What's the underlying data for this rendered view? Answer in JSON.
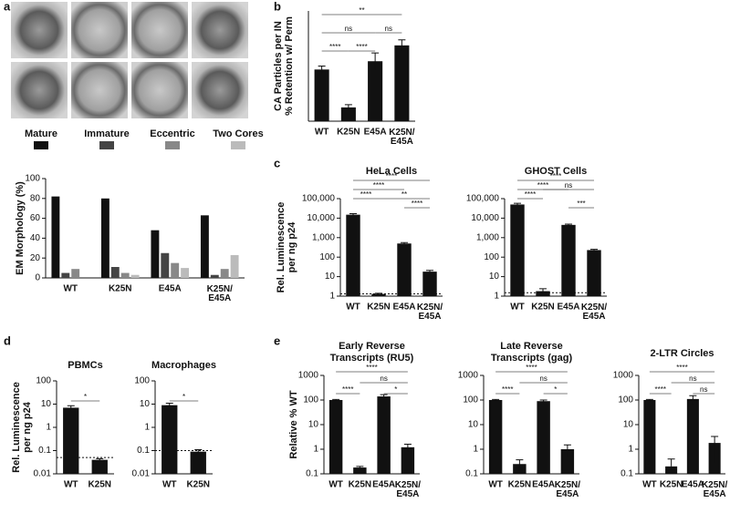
{
  "panel_labels": [
    "a",
    "b",
    "c",
    "d",
    "e"
  ],
  "chart_data": [
    {
      "type": "bar",
      "ylabel": [
        "EM Morphology (%)"
      ],
      "categories": [
        "WT",
        "K25N",
        "E45A",
        "K25N/E45A"
      ],
      "series": [
        {
          "name": "Mature",
          "color": "#111111",
          "values": [
            82,
            80,
            48,
            63
          ]
        },
        {
          "name": "Immature",
          "color": "#444444",
          "values": [
            5,
            11,
            25,
            3
          ]
        },
        {
          "name": "Eccentric",
          "color": "#888888",
          "values": [
            9,
            5,
            15,
            9
          ]
        },
        {
          "name": "Two Cores",
          "color": "#bbbbbb",
          "values": [
            0,
            3,
            10,
            23
          ]
        }
      ],
      "ylim": [
        0,
        100
      ],
      "yticks": [
        0,
        20,
        40,
        60,
        80,
        100
      ]
    },
    {
      "type": "bar",
      "ylabel": [
        "CA Particles per IN",
        "% Retention w/ Perm"
      ],
      "categories": [
        "WT",
        "K25N",
        "E45A",
        "K25N/E45A"
      ],
      "values": [
        75,
        20,
        87,
        110
      ],
      "errors": [
        5,
        4,
        12,
        8
      ],
      "color": "#111111",
      "ylim": [
        0,
        160
      ],
      "annotations": [
        [
          {
            "text": "**",
            "from": "WT",
            "to": "K25N/E45A"
          }
        ],
        [
          {
            "text": "ns",
            "from": "WT",
            "to": "E45A"
          },
          {
            "text": "ns",
            "from": "E45A",
            "to": "K25N/E45A"
          }
        ],
        [
          {
            "text": "****",
            "from": "WT",
            "to": "K25N"
          },
          {
            "text": "****",
            "from": "K25N",
            "to": "E45A"
          }
        ]
      ]
    },
    {
      "type": "bar",
      "title": "HeLa Cells",
      "ylabel": [
        "Rel. Luminescence",
        "per ng p24"
      ],
      "log": true,
      "categories": [
        "WT",
        "K25N",
        "E45A",
        "K25N/E45A"
      ],
      "values": [
        15000,
        1.3,
        500,
        18
      ],
      "errors": [
        2000,
        0.1,
        60,
        3
      ],
      "color": "#111111",
      "threshold": 1.3,
      "ylim": [
        1,
        100000
      ],
      "yticks": [
        1,
        10,
        100,
        {
          "value": 1000,
          "label": "1,000"
        },
        {
          "value": 10000,
          "label": "10,000"
        },
        {
          "value": 100000,
          "label": "100,000"
        }
      ],
      "annotations": [
        [
          {
            "text": "****",
            "from": "WT",
            "to": "K25N/E45A"
          }
        ],
        [
          {
            "text": "****",
            "from": "WT",
            "to": "E45A"
          }
        ],
        [
          {
            "text": "****",
            "from": "WT",
            "to": "K25N"
          },
          {
            "text": "**",
            "from": "K25N",
            "to": "K25N/E45A"
          }
        ],
        [
          {
            "text": "****",
            "from": "E45A",
            "to": "K25N/E45A"
          }
        ]
      ]
    },
    {
      "type": "bar",
      "title": "GHOST Cells",
      "log": true,
      "categories": [
        "WT",
        "K25N",
        "E45A",
        "K25N/E45A"
      ],
      "values": [
        50000,
        1.8,
        4500,
        230
      ],
      "errors": [
        8000,
        0.6,
        400,
        20
      ],
      "color": "#111111",
      "threshold": 1.5,
      "ylim": [
        1,
        100000
      ],
      "yticks": [
        1,
        10,
        100,
        {
          "value": 1000,
          "label": "1,000"
        },
        {
          "value": 10000,
          "label": "10,000"
        },
        {
          "value": 100000,
          "label": "100,000"
        }
      ],
      "annotations": [
        [
          {
            "text": "****",
            "from": "WT",
            "to": "K25N/E45A"
          }
        ],
        [
          {
            "text": "****",
            "from": "WT",
            "to": "E45A"
          },
          {
            "text": "ns",
            "from": "K25N",
            "to": "K25N/E45A"
          }
        ],
        [
          {
            "text": "****",
            "from": "WT",
            "to": "K25N"
          }
        ],
        [
          {
            "text": "***",
            "from": "E45A",
            "to": "K25N/E45A"
          }
        ]
      ]
    },
    {
      "type": "bar",
      "title": "PBMCs",
      "ylabel": [
        "Rel. Luminescence",
        "per ng p24"
      ],
      "log": true,
      "categories": [
        "WT",
        "K25N"
      ],
      "values": [
        7,
        0.04
      ],
      "errors": [
        1.5,
        0.005
      ],
      "color": "#111111",
      "threshold": 0.05,
      "ylim": [
        0.01,
        100
      ],
      "yticks": [
        0.01,
        0.1,
        1,
        10,
        100
      ],
      "annotations": [
        [
          {
            "text": "*",
            "from": "WT",
            "to": "K25N"
          }
        ]
      ]
    },
    {
      "type": "bar",
      "title": "Macrophages",
      "log": true,
      "categories": [
        "WT",
        "K25N"
      ],
      "values": [
        9,
        0.09
      ],
      "errors": [
        2,
        0.02
      ],
      "color": "#111111",
      "threshold": 0.1,
      "ylim": [
        0.01,
        100
      ],
      "yticks": [
        0.01,
        0.1,
        1,
        10,
        100
      ],
      "annotations": [
        [
          {
            "text": "*",
            "from": "WT",
            "to": "K25N"
          }
        ]
      ]
    },
    {
      "type": "bar",
      "title": [
        "Early Reverse",
        "Transcripts (RU5)"
      ],
      "ylabel": [
        "Relative % WT"
      ],
      "log": true,
      "categories": [
        "WT",
        "K25N",
        "E45A",
        "K25N/E45A"
      ],
      "values": [
        100,
        0.18,
        140,
        1.2
      ],
      "errors": [
        5,
        0.02,
        25,
        0.4
      ],
      "color": "#111111",
      "ylim": [
        0.1,
        1000
      ],
      "yticks": [
        0.1,
        1,
        10,
        100,
        1000
      ],
      "annotations": [
        [
          {
            "text": "****",
            "from": "WT",
            "to": "K25N/E45A"
          }
        ],
        [
          {
            "text": "ns",
            "from": "K25N",
            "to": "K25N/E45A"
          }
        ],
        [
          {
            "text": "****",
            "from": "WT",
            "to": "K25N"
          },
          {
            "text": "*",
            "from": "E45A",
            "to": "K25N/E45A"
          }
        ]
      ]
    },
    {
      "type": "bar",
      "title": [
        "Late Reverse",
        "Transcripts (gag)"
      ],
      "log": true,
      "categories": [
        "WT",
        "K25N",
        "E45A",
        "K25N/E45A"
      ],
      "values": [
        100,
        0.25,
        90,
        1.0
      ],
      "errors": [
        5,
        0.12,
        10,
        0.5
      ],
      "color": "#111111",
      "ylim": [
        0.1,
        1000
      ],
      "yticks": [
        0.1,
        1,
        10,
        100,
        1000
      ],
      "annotations": [
        [
          {
            "text": "****",
            "from": "WT",
            "to": "K25N/E45A"
          }
        ],
        [
          {
            "text": "ns",
            "from": "K25N",
            "to": "K25N/E45A"
          }
        ],
        [
          {
            "text": "****",
            "from": "WT",
            "to": "K25N"
          },
          {
            "text": "*",
            "from": "E45A",
            "to": "K25N/E45A"
          }
        ]
      ]
    },
    {
      "type": "bar",
      "title": "2-LTR Circles",
      "log": true,
      "categories": [
        "WT",
        "K25N",
        "E45A",
        "K25N/E45A"
      ],
      "values": [
        100,
        0.2,
        110,
        1.8
      ],
      "errors": [
        5,
        0.2,
        40,
        1.5
      ],
      "color": "#111111",
      "ylim": [
        0.1,
        1000
      ],
      "yticks": [
        0.1,
        1,
        10,
        100,
        1000
      ],
      "annotations": [
        [
          {
            "text": "****",
            "from": "WT",
            "to": "K25N/E45A"
          }
        ],
        [
          {
            "text": "ns",
            "from": "K25N",
            "to": "K25N/E45A"
          }
        ],
        [
          {
            "text": "****",
            "from": "WT",
            "to": "K25N"
          },
          {
            "text": "ns",
            "from": "E45A",
            "to": "K25N/E45A"
          }
        ]
      ]
    }
  ]
}
